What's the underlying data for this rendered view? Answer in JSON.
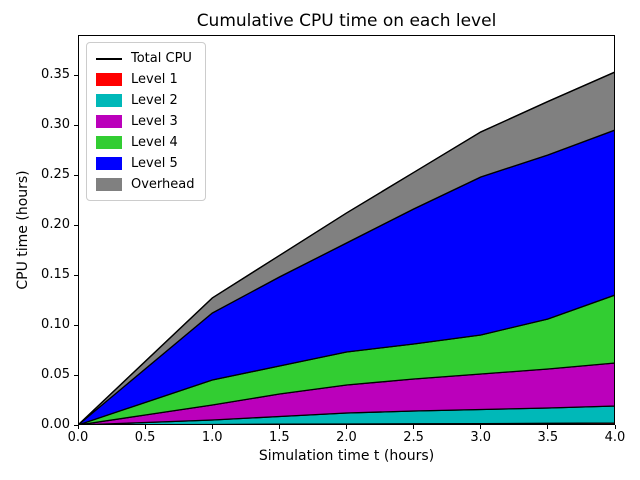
{
  "figure": {
    "title": "Cumulative CPU time on each level",
    "xlabel": "Simulation time t (hours)",
    "ylabel": "CPU time (hours)"
  },
  "chart_data": {
    "type": "area",
    "stacked": true,
    "title": "Cumulative CPU time on each level",
    "xlabel": "Simulation time t (hours)",
    "ylabel": "CPU time (hours)",
    "xlim": [
      0,
      4
    ],
    "ylim": [
      0,
      0.39
    ],
    "grid": false,
    "x": [
      0,
      0.5,
      1.0,
      1.5,
      2.0,
      2.5,
      3.0,
      3.5,
      4.0
    ],
    "series": [
      {
        "name": "Level 1",
        "color": "#ff0000",
        "values": [
          0,
          0.0003,
          0.0005,
          0.0008,
          0.001,
          0.0012,
          0.0014,
          0.0017,
          0.002
        ]
      },
      {
        "name": "Level 2",
        "color": "#00b8b8",
        "values": [
          0,
          0.0022,
          0.0045,
          0.0077,
          0.011,
          0.0128,
          0.0141,
          0.0153,
          0.017
        ]
      },
      {
        "name": "Level 3",
        "color": "#bb00bb",
        "values": [
          0,
          0.0075,
          0.015,
          0.0225,
          0.028,
          0.032,
          0.0355,
          0.039,
          0.043
        ]
      },
      {
        "name": "Level 4",
        "color": "#32cd32",
        "values": [
          0,
          0.0125,
          0.025,
          0.028,
          0.033,
          0.035,
          0.039,
          0.05,
          0.068
        ]
      },
      {
        "name": "Level 5",
        "color": "#0000ff",
        "values": [
          0,
          0.0335,
          0.067,
          0.089,
          0.109,
          0.135,
          0.158,
          0.164,
          0.165
        ]
      },
      {
        "name": "Overhead",
        "color": "#808080",
        "values": [
          0,
          0.0075,
          0.015,
          0.0215,
          0.03,
          0.0365,
          0.045,
          0.0535,
          0.058
        ]
      }
    ],
    "total_line": {
      "label": "Total CPU",
      "color": "#000000"
    },
    "edge_color": "#000000",
    "xticks": [
      {
        "value": 0.0,
        "label": "0.0"
      },
      {
        "value": 0.5,
        "label": "0.5"
      },
      {
        "value": 1.0,
        "label": "1.0"
      },
      {
        "value": 1.5,
        "label": "1.5"
      },
      {
        "value": 2.0,
        "label": "2.0"
      },
      {
        "value": 2.5,
        "label": "2.5"
      },
      {
        "value": 3.0,
        "label": "3.0"
      },
      {
        "value": 3.5,
        "label": "3.5"
      },
      {
        "value": 4.0,
        "label": "4.0"
      }
    ],
    "yticks": [
      {
        "value": 0.0,
        "label": "0.00"
      },
      {
        "value": 0.05,
        "label": "0.05"
      },
      {
        "value": 0.1,
        "label": "0.10"
      },
      {
        "value": 0.15,
        "label": "0.15"
      },
      {
        "value": 0.2,
        "label": "0.20"
      },
      {
        "value": 0.25,
        "label": "0.25"
      },
      {
        "value": 0.3,
        "label": "0.30"
      },
      {
        "value": 0.35,
        "label": "0.35"
      }
    ],
    "legend": {
      "position": "upper-left",
      "entries": [
        {
          "label": "Total CPU",
          "type": "line",
          "color": "#000000"
        },
        {
          "label": "Level 1",
          "type": "patch",
          "color": "#ff0000"
        },
        {
          "label": "Level 2",
          "type": "patch",
          "color": "#00b8b8"
        },
        {
          "label": "Level 3",
          "type": "patch",
          "color": "#bb00bb"
        },
        {
          "label": "Level 4",
          "type": "patch",
          "color": "#32cd32"
        },
        {
          "label": "Level 5",
          "type": "patch",
          "color": "#0000ff"
        },
        {
          "label": "Overhead",
          "type": "patch",
          "color": "#808080"
        }
      ]
    }
  }
}
